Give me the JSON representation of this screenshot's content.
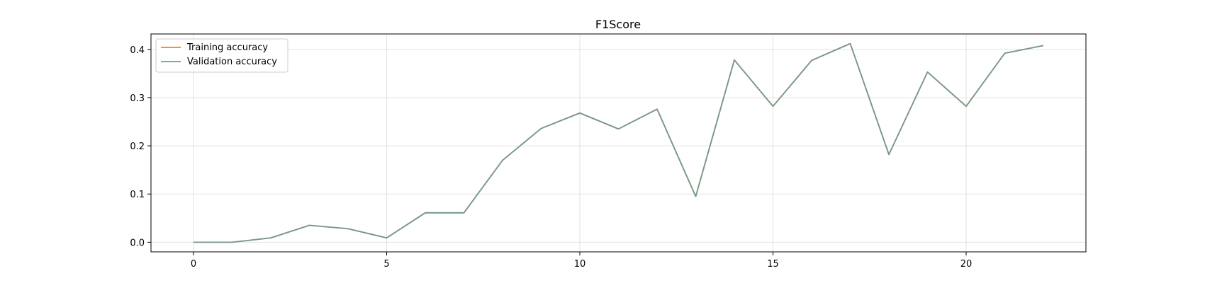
{
  "chart_data": {
    "type": "line",
    "title": "F1Score",
    "xlabel": "",
    "ylabel": "",
    "xlim": [
      -1.1,
      23.1
    ],
    "ylim": [
      -0.02,
      0.432
    ],
    "x_ticks": [
      0,
      5,
      10,
      15,
      20
    ],
    "y_ticks": [
      0.0,
      0.1,
      0.2,
      0.3,
      0.4
    ],
    "grid": true,
    "legend_position": "top-left",
    "x": [
      0,
      1,
      2,
      3,
      4,
      5,
      6,
      7,
      8,
      9,
      10,
      11,
      12,
      13,
      14,
      15,
      16,
      17,
      18,
      19,
      20,
      21,
      22
    ],
    "series": [
      {
        "name": "Training accuracy",
        "color": "#ff7f0e",
        "values": [
          0.0,
          0.0,
          0.009,
          0.035,
          0.028,
          0.009,
          0.061,
          0.061,
          0.17,
          0.236,
          0.268,
          0.235,
          0.276,
          0.095,
          0.378,
          0.282,
          0.377,
          0.412,
          0.182,
          0.353,
          0.282,
          0.392,
          0.408
        ]
      },
      {
        "name": "Validation accuracy",
        "color": "#5f9ea0",
        "values": [
          0.0,
          0.0,
          0.009,
          0.035,
          0.028,
          0.009,
          0.061,
          0.061,
          0.17,
          0.236,
          0.268,
          0.235,
          0.276,
          0.095,
          0.378,
          0.282,
          0.377,
          0.412,
          0.182,
          0.353,
          0.282,
          0.392,
          0.408
        ]
      }
    ]
  }
}
